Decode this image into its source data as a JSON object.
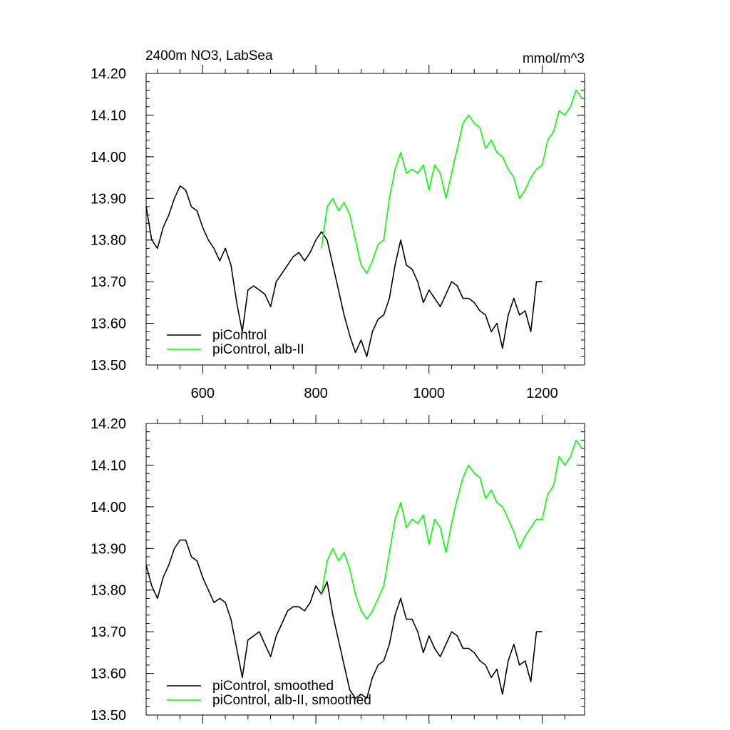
{
  "chart_data": [
    {
      "type": "line",
      "title_left": "2400m NO3, LabSea",
      "title_right": "mmol/m^3",
      "xlim": [
        500,
        1275
      ],
      "ylim": [
        13.5,
        14.2
      ],
      "x_ticks": [
        600,
        800,
        1000,
        1200
      ],
      "x_tick_labels": [
        "600",
        "800",
        "1000",
        "1200"
      ],
      "y_ticks": [
        13.5,
        13.6,
        13.7,
        13.8,
        13.9,
        14.0,
        14.1,
        14.2
      ],
      "y_tick_labels": [
        "13.50",
        "13.60",
        "13.70",
        "13.80",
        "13.90",
        "14.00",
        "14.10",
        "14.20"
      ],
      "legend_position": "bottom-left",
      "series": [
        {
          "name": "piControl",
          "color": "#000000",
          "x": [
            500,
            510,
            520,
            530,
            540,
            550,
            560,
            570,
            580,
            590,
            600,
            610,
            620,
            630,
            640,
            650,
            660,
            670,
            680,
            690,
            700,
            710,
            720,
            730,
            740,
            750,
            760,
            770,
            780,
            790,
            800,
            810,
            820,
            830,
            840,
            850,
            860,
            870,
            880,
            890,
            900,
            910,
            920,
            930,
            940,
            950,
            960,
            970,
            980,
            990,
            1000,
            1010,
            1020,
            1030,
            1040,
            1050,
            1060,
            1070,
            1080,
            1090,
            1100,
            1110,
            1120,
            1130,
            1140,
            1150,
            1160,
            1170,
            1180,
            1190,
            1200
          ],
          "y": [
            13.88,
            13.8,
            13.78,
            13.83,
            13.86,
            13.9,
            13.93,
            13.92,
            13.88,
            13.87,
            13.83,
            13.8,
            13.78,
            13.75,
            13.78,
            13.74,
            13.65,
            13.58,
            13.68,
            13.69,
            13.68,
            13.67,
            13.64,
            13.7,
            13.72,
            13.74,
            13.76,
            13.77,
            13.75,
            13.77,
            13.8,
            13.82,
            13.8,
            13.74,
            13.68,
            13.62,
            13.57,
            13.53,
            13.56,
            13.52,
            13.58,
            13.61,
            13.62,
            13.66,
            13.74,
            13.8,
            13.74,
            13.73,
            13.7,
            13.65,
            13.68,
            13.66,
            13.64,
            13.67,
            13.7,
            13.69,
            13.66,
            13.66,
            13.65,
            13.63,
            13.62,
            13.58,
            13.6,
            13.54,
            13.62,
            13.66,
            13.62,
            13.63,
            13.58,
            13.7,
            13.7
          ]
        },
        {
          "name": "piControl, alb-II",
          "color": "#00ff00",
          "x": [
            810,
            820,
            830,
            840,
            850,
            860,
            870,
            880,
            890,
            900,
            910,
            920,
            930,
            940,
            950,
            960,
            970,
            980,
            990,
            1000,
            1010,
            1020,
            1030,
            1040,
            1050,
            1060,
            1070,
            1080,
            1090,
            1100,
            1110,
            1120,
            1130,
            1140,
            1150,
            1160,
            1170,
            1180,
            1190,
            1200,
            1210,
            1220,
            1230,
            1240,
            1250,
            1260,
            1270
          ],
          "y": [
            13.78,
            13.88,
            13.9,
            13.87,
            13.89,
            13.86,
            13.8,
            13.74,
            13.72,
            13.75,
            13.79,
            13.8,
            13.9,
            13.97,
            14.01,
            13.96,
            13.97,
            13.96,
            13.98,
            13.92,
            13.98,
            13.96,
            13.9,
            13.96,
            14.02,
            14.08,
            14.1,
            14.08,
            14.07,
            14.02,
            14.04,
            14.01,
            14.0,
            13.97,
            13.95,
            13.9,
            13.92,
            13.95,
            13.97,
            13.98,
            14.04,
            14.06,
            14.11,
            14.1,
            14.12,
            14.16,
            14.14
          ]
        }
      ]
    },
    {
      "type": "line",
      "xlim": [
        500,
        1275
      ],
      "ylim": [
        13.5,
        14.2
      ],
      "x_ticks": [
        600,
        800,
        1000,
        1200
      ],
      "y_ticks": [
        13.5,
        13.6,
        13.7,
        13.8,
        13.9,
        14.0,
        14.1,
        14.2
      ],
      "y_tick_labels": [
        "13.50",
        "13.60",
        "13.70",
        "13.80",
        "13.90",
        "14.00",
        "14.10",
        "14.20"
      ],
      "legend_position": "bottom-left",
      "series": [
        {
          "name": "piControl, smoothed",
          "color": "#000000",
          "x": [
            500,
            510,
            520,
            530,
            540,
            550,
            560,
            570,
            580,
            590,
            600,
            610,
            620,
            630,
            640,
            650,
            660,
            670,
            680,
            690,
            700,
            710,
            720,
            730,
            740,
            750,
            760,
            770,
            780,
            790,
            800,
            810,
            820,
            830,
            840,
            850,
            860,
            870,
            880,
            890,
            900,
            910,
            920,
            930,
            940,
            950,
            960,
            970,
            980,
            990,
            1000,
            1010,
            1020,
            1030,
            1040,
            1050,
            1060,
            1070,
            1080,
            1090,
            1100,
            1110,
            1120,
            1130,
            1140,
            1150,
            1160,
            1170,
            1180,
            1190,
            1200
          ],
          "y": [
            13.86,
            13.81,
            13.78,
            13.83,
            13.86,
            13.9,
            13.92,
            13.92,
            13.88,
            13.87,
            13.83,
            13.8,
            13.77,
            13.78,
            13.77,
            13.73,
            13.66,
            13.59,
            13.68,
            13.69,
            13.7,
            13.67,
            13.64,
            13.69,
            13.72,
            13.75,
            13.76,
            13.76,
            13.75,
            13.77,
            13.81,
            13.79,
            13.82,
            13.74,
            13.68,
            13.62,
            13.56,
            13.54,
            13.55,
            13.54,
            13.59,
            13.62,
            13.63,
            13.67,
            13.74,
            13.78,
            13.73,
            13.73,
            13.7,
            13.65,
            13.69,
            13.66,
            13.64,
            13.67,
            13.7,
            13.69,
            13.66,
            13.66,
            13.65,
            13.63,
            13.62,
            13.59,
            13.61,
            13.55,
            13.63,
            13.67,
            13.62,
            13.63,
            13.58,
            13.7,
            13.7
          ]
        },
        {
          "name": "piControl, alb-II, smoothed",
          "color": "#00ff00",
          "x": [
            810,
            820,
            830,
            840,
            850,
            860,
            870,
            880,
            890,
            900,
            910,
            920,
            930,
            940,
            950,
            960,
            970,
            980,
            990,
            1000,
            1010,
            1020,
            1030,
            1040,
            1050,
            1060,
            1070,
            1080,
            1090,
            1100,
            1110,
            1120,
            1130,
            1140,
            1150,
            1160,
            1170,
            1180,
            1190,
            1200,
            1210,
            1220,
            1230,
            1240,
            1250,
            1260,
            1270
          ],
          "y": [
            13.79,
            13.87,
            13.9,
            13.87,
            13.89,
            13.85,
            13.79,
            13.75,
            13.73,
            13.75,
            13.78,
            13.81,
            13.89,
            13.97,
            14.01,
            13.95,
            13.97,
            13.96,
            13.98,
            13.91,
            13.97,
            13.95,
            13.89,
            13.96,
            14.02,
            14.07,
            14.1,
            14.08,
            14.07,
            14.02,
            14.04,
            14.01,
            14.0,
            13.97,
            13.94,
            13.9,
            13.93,
            13.95,
            13.97,
            13.97,
            14.03,
            14.05,
            14.12,
            14.1,
            14.12,
            14.16,
            14.14
          ]
        }
      ]
    }
  ]
}
